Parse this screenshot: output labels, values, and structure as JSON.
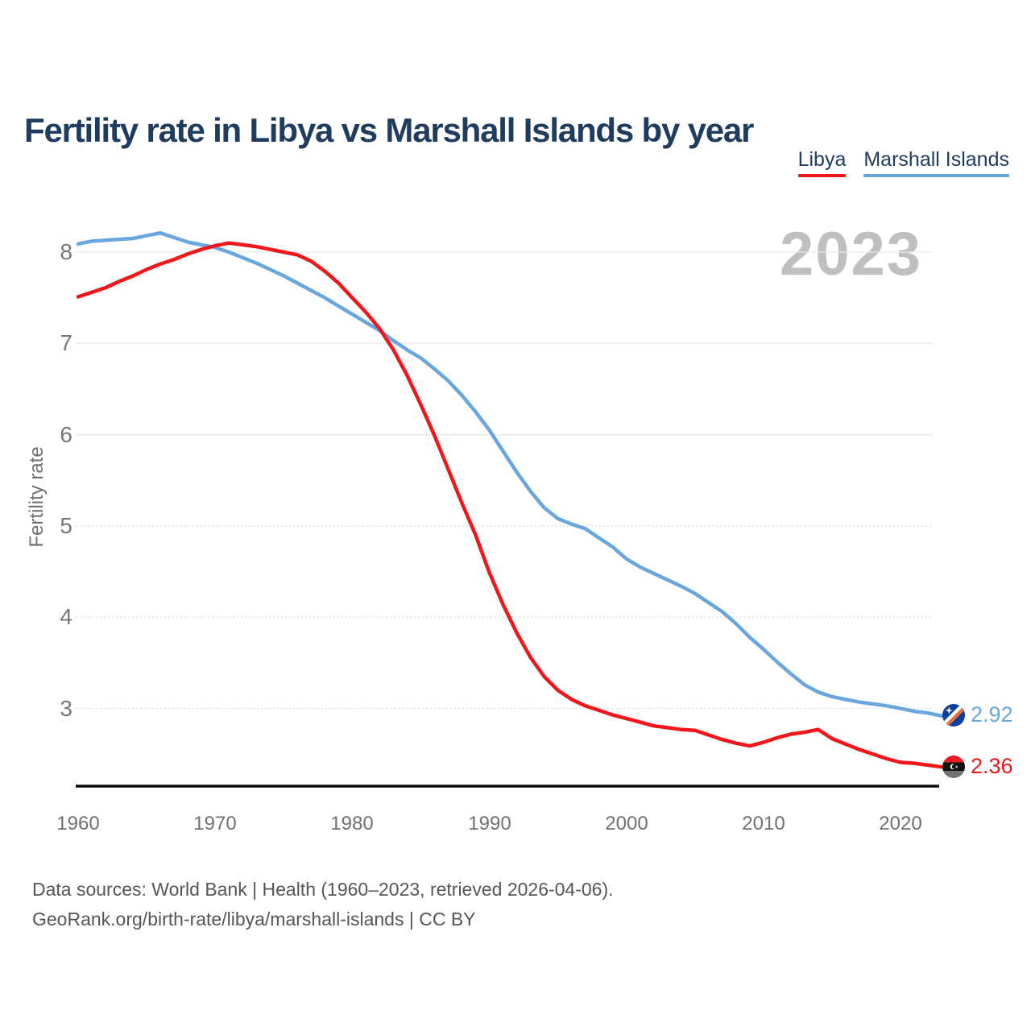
{
  "header": {
    "title": "Fertility rate in Libya vs Marshall Islands by year"
  },
  "legend": [
    {
      "label": "Libya",
      "color": "#f2161b"
    },
    {
      "label": "Marshall Islands",
      "color": "#6aa6de"
    }
  ],
  "watermark": "2023",
  "chart_data": {
    "type": "line",
    "title": "Fertility rate in Libya vs Marshall Islands by year",
    "xlabel": "",
    "ylabel": "Fertility rate",
    "x_ticks": [
      1960,
      1970,
      1980,
      1990,
      2000,
      2010,
      2020
    ],
    "y_ticks": [
      3,
      4,
      5,
      6,
      7,
      8
    ],
    "ylim": [
      2.15,
      8.4
    ],
    "grid": true,
    "legend_position": "top-right",
    "x": [
      1960,
      1961,
      1962,
      1963,
      1964,
      1965,
      1966,
      1967,
      1968,
      1969,
      1970,
      1971,
      1972,
      1973,
      1974,
      1975,
      1976,
      1977,
      1978,
      1979,
      1980,
      1981,
      1982,
      1983,
      1984,
      1985,
      1986,
      1987,
      1988,
      1989,
      1990,
      1991,
      1992,
      1993,
      1994,
      1995,
      1996,
      1997,
      1998,
      1999,
      2000,
      2001,
      2002,
      2003,
      2004,
      2005,
      2006,
      2007,
      2008,
      2009,
      2010,
      2011,
      2012,
      2013,
      2014,
      2015,
      2016,
      2017,
      2018,
      2019,
      2020,
      2021,
      2022,
      2023
    ],
    "series": [
      {
        "name": "Libya",
        "color": "#f2161b",
        "end_label": "2.36",
        "values": [
          7.51,
          7.56,
          7.61,
          7.68,
          7.74,
          7.81,
          7.87,
          7.92,
          7.98,
          8.03,
          8.07,
          8.1,
          8.08,
          8.06,
          8.03,
          8.0,
          7.97,
          7.9,
          7.79,
          7.66,
          7.5,
          7.34,
          7.16,
          6.93,
          6.65,
          6.33,
          5.99,
          5.62,
          5.25,
          4.9,
          4.49,
          4.14,
          3.83,
          3.56,
          3.35,
          3.2,
          3.1,
          3.03,
          2.98,
          2.93,
          2.89,
          2.85,
          2.81,
          2.79,
          2.77,
          2.76,
          2.71,
          2.66,
          2.62,
          2.59,
          2.63,
          2.68,
          2.72,
          2.74,
          2.77,
          2.67,
          2.61,
          2.55,
          2.5,
          2.45,
          2.41,
          2.4,
          2.38,
          2.36
        ]
      },
      {
        "name": "Marshall Islands",
        "color": "#6aa6de",
        "end_label": "2.92",
        "values": [
          8.09,
          8.12,
          8.13,
          8.14,
          8.15,
          8.18,
          8.21,
          8.16,
          8.11,
          8.08,
          8.05,
          8.0,
          7.94,
          7.88,
          7.81,
          7.74,
          7.66,
          7.58,
          7.5,
          7.41,
          7.32,
          7.23,
          7.14,
          7.03,
          6.93,
          6.84,
          6.72,
          6.59,
          6.43,
          6.25,
          6.05,
          5.82,
          5.59,
          5.38,
          5.2,
          5.08,
          5.02,
          4.97,
          4.87,
          4.77,
          4.64,
          4.55,
          4.48,
          4.41,
          4.34,
          4.26,
          4.16,
          4.06,
          3.93,
          3.78,
          3.65,
          3.51,
          3.38,
          3.26,
          3.18,
          3.13,
          3.1,
          3.07,
          3.05,
          3.03,
          3.0,
          2.97,
          2.95,
          2.92
        ]
      }
    ]
  },
  "footer": {
    "line1": "Data sources: World Bank | Health (1960–2023, retrieved 2026-04-06).",
    "line2": "GeoRank.org/birth-rate/libya/marshall-islands | CC BY"
  }
}
